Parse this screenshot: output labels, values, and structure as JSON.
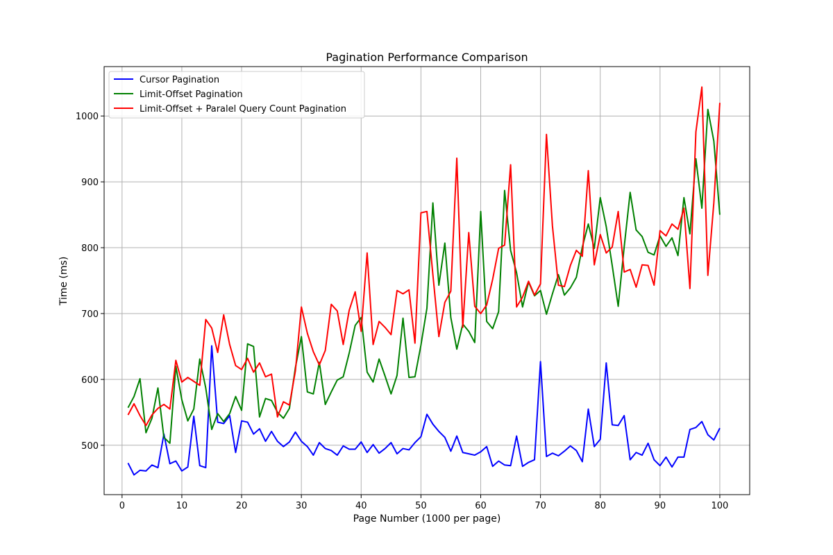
{
  "chart_data": {
    "type": "line",
    "title": "Pagination Performance Comparison",
    "xlabel": "Page Number (1000 per page)",
    "ylabel": "Time (ms)",
    "xlim": [
      -3,
      105
    ],
    "ylim": [
      425,
      1075
    ],
    "xticks": [
      0,
      10,
      20,
      30,
      40,
      50,
      60,
      70,
      80,
      90,
      100
    ],
    "yticks": [
      500,
      600,
      700,
      800,
      900,
      1000
    ],
    "grid": true,
    "legend_position": "top-left",
    "x": [
      1,
      2,
      3,
      4,
      5,
      6,
      7,
      8,
      9,
      10,
      11,
      12,
      13,
      14,
      15,
      16,
      17,
      18,
      19,
      20,
      21,
      22,
      23,
      24,
      25,
      26,
      27,
      28,
      29,
      30,
      31,
      32,
      33,
      34,
      35,
      36,
      37,
      38,
      39,
      40,
      41,
      42,
      43,
      44,
      45,
      46,
      47,
      48,
      49,
      50,
      51,
      52,
      53,
      54,
      55,
      56,
      57,
      58,
      59,
      60,
      61,
      62,
      63,
      64,
      65,
      66,
      67,
      68,
      69,
      70,
      71,
      72,
      73,
      74,
      75,
      76,
      77,
      78,
      79,
      80,
      81,
      82,
      83,
      84,
      85,
      86,
      87,
      88,
      89,
      90,
      91,
      92,
      93,
      94,
      95,
      96,
      97,
      98,
      99,
      100
    ],
    "series": [
      {
        "name": "Cursor Pagination",
        "color": "#0000ff",
        "values": [
          473,
          455,
          462,
          461,
          470,
          466,
          517,
          472,
          476,
          461,
          467,
          544,
          469,
          466,
          651,
          535,
          533,
          545,
          489,
          537,
          535,
          517,
          525,
          506,
          521,
          506,
          498,
          505,
          520,
          506,
          498,
          485,
          504,
          495,
          492,
          485,
          499,
          494,
          494,
          505,
          489,
          501,
          488,
          495,
          504,
          487,
          495,
          493,
          504,
          513,
          547,
          532,
          521,
          512,
          491,
          514,
          489,
          487,
          485,
          490,
          498,
          468,
          476,
          470,
          469,
          514,
          468,
          474,
          478,
          627,
          483,
          488,
          484,
          491,
          499,
          492,
          475,
          555,
          498,
          509,
          625,
          531,
          530,
          545,
          478,
          489,
          485,
          503,
          478,
          469,
          482,
          467,
          482,
          482,
          524,
          527,
          536,
          516,
          508,
          526
        ]
      },
      {
        "name": "Limit-Offset Pagination",
        "color": "#008000",
        "values": [
          557,
          574,
          601,
          519,
          541,
          587,
          512,
          503,
          620,
          569,
          537,
          555,
          631,
          587,
          524,
          548,
          536,
          548,
          574,
          553,
          654,
          650,
          543,
          571,
          568,
          550,
          541,
          556,
          618,
          665,
          581,
          578,
          626,
          562,
          581,
          599,
          604,
          640,
          682,
          694,
          611,
          596,
          631,
          605,
          578,
          606,
          693,
          603,
          604,
          652,
          708,
          868,
          743,
          807,
          694,
          646,
          684,
          673,
          656,
          855,
          688,
          677,
          703,
          887,
          796,
          762,
          710,
          748,
          727,
          735,
          699,
          730,
          759,
          728,
          739,
          755,
          801,
          836,
          799,
          876,
          832,
          773,
          711,
          801,
          884,
          827,
          817,
          793,
          789,
          818,
          802,
          815,
          788,
          876,
          821,
          935,
          860,
          1010,
          962,
          850
        ]
      },
      {
        "name": "Limit-Offset + Paralel Query Count Pagination",
        "color": "#ff0000",
        "values": [
          546,
          563,
          545,
          530,
          546,
          556,
          562,
          555,
          629,
          596,
          603,
          597,
          591,
          691,
          678,
          641,
          698,
          653,
          621,
          615,
          632,
          611,
          625,
          604,
          608,
          543,
          566,
          561,
          613,
          710,
          670,
          642,
          622,
          644,
          714,
          704,
          653,
          705,
          733,
          673,
          792,
          653,
          688,
          679,
          668,
          735,
          730,
          736,
          655,
          853,
          855,
          759,
          665,
          717,
          734,
          936,
          679,
          823,
          711,
          700,
          713,
          752,
          799,
          804,
          926,
          710,
          725,
          749,
          728,
          745,
          972,
          833,
          743,
          741,
          773,
          796,
          787,
          917,
          774,
          820,
          792,
          801,
          855,
          763,
          767,
          740,
          774,
          773,
          743,
          826,
          818,
          836,
          828,
          860,
          738,
          976,
          1044,
          758,
          868,
          1020
        ]
      }
    ]
  }
}
